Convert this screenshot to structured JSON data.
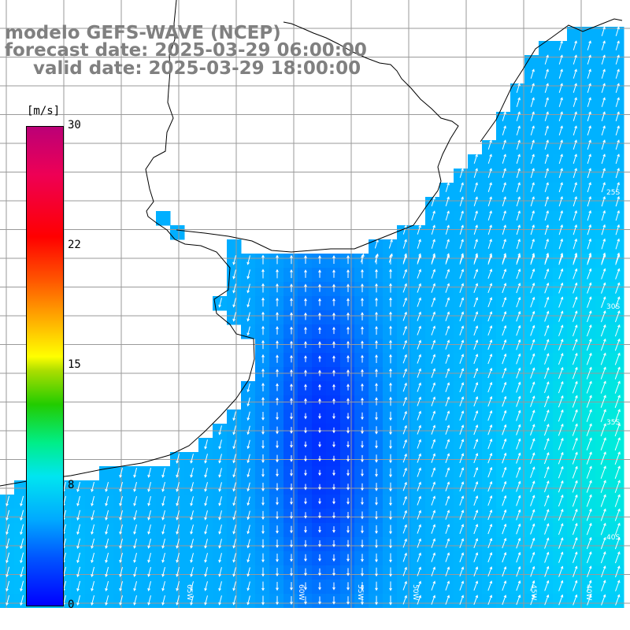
{
  "title": {
    "model": "modelo GEFS-WAVE (NCEP)",
    "forecast": "forecast date: 2025-03-29 06:00:00",
    "valid": "valid date: 2025-03-29 18:00:00"
  },
  "colorbar": {
    "unit": "[m/s]",
    "ticks": [
      "30",
      "22",
      "15",
      "8",
      "0"
    ],
    "range": [
      0,
      30
    ],
    "colors": [
      "#0000ff",
      "#00aaff",
      "#00e5f0",
      "#00ee88",
      "#22cc00",
      "#ffff00",
      "#ff5500",
      "#ff0000",
      "#bb0077"
    ]
  },
  "map": {
    "lon_labels": [
      "65W",
      "60W",
      "55W",
      "50W",
      "45W",
      "40W"
    ],
    "lat_labels": [
      "25S",
      "30S",
      "35S",
      "40S"
    ],
    "land_color": "#ffffff",
    "coast_color": "#000000",
    "grid_color": "#9a9a9a"
  }
}
